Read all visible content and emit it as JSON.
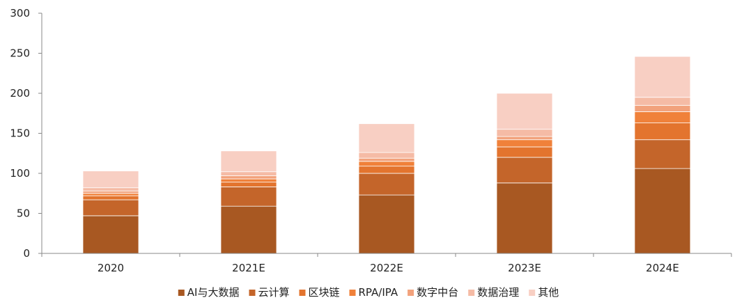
{
  "chart_data": {
    "type": "bar",
    "stacked": true,
    "categories": [
      "2020",
      "2021E",
      "2022E",
      "2023E",
      "2024E"
    ],
    "ylim": [
      0,
      300
    ],
    "yticks": [
      0,
      50,
      100,
      150,
      200,
      250,
      300
    ],
    "grid": false,
    "legend_position": "bottom",
    "series": [
      {
        "name": "AI与大数据",
        "color": "#A85822",
        "values": [
          47,
          59,
          73,
          88,
          106
        ]
      },
      {
        "name": "云计算",
        "color": "#C4652A",
        "values": [
          20,
          24,
          27,
          32,
          36
        ]
      },
      {
        "name": "区块链",
        "color": "#E3742E",
        "values": [
          5,
          6,
          9,
          13,
          21
        ]
      },
      {
        "name": "RPA/IPA",
        "color": "#F0813A",
        "values": [
          3,
          4,
          6,
          9,
          14
        ]
      },
      {
        "name": "数字中台",
        "color": "#F2A27C",
        "values": [
          3,
          4,
          4,
          4,
          8
        ]
      },
      {
        "name": "数据治理",
        "color": "#F5BBA5",
        "values": [
          4,
          5,
          7,
          9,
          10
        ]
      },
      {
        "name": "其他",
        "color": "#F8CFC3",
        "values": [
          21,
          26,
          36,
          45,
          51
        ]
      }
    ]
  }
}
